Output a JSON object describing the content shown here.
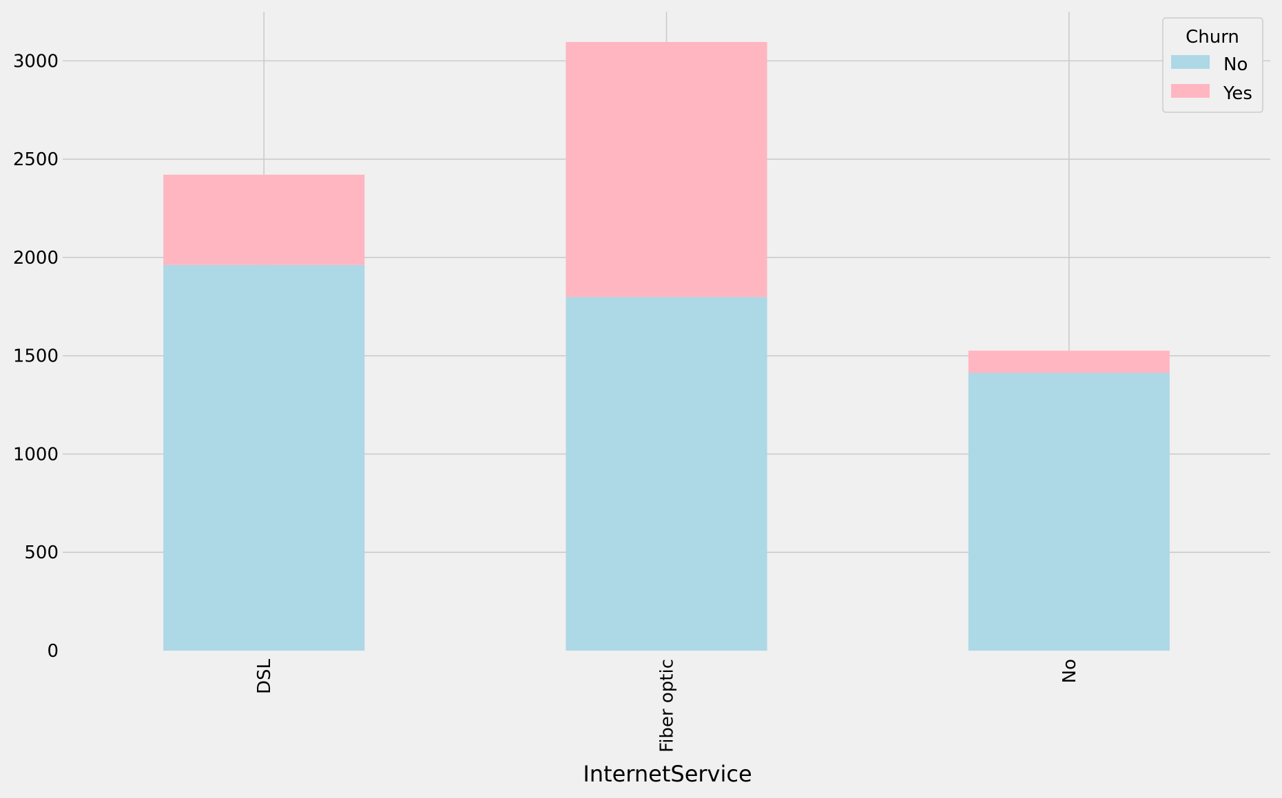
{
  "chart_data": {
    "type": "bar",
    "stacked": true,
    "categories": [
      "DSL",
      "Fiber optic",
      "No"
    ],
    "series": [
      {
        "name": "No",
        "values": [
          1962,
          1799,
          1413
        ],
        "color": "#add8e6"
      },
      {
        "name": "Yes",
        "values": [
          459,
          1297,
          113
        ],
        "color": "#ffb6c1"
      }
    ],
    "title": "",
    "xlabel": "InternetService",
    "ylabel": "",
    "ylim": [
      0,
      3250
    ],
    "yticks": [
      0,
      500,
      1000,
      1500,
      2000,
      2500,
      3000
    ],
    "grid": true,
    "legend": {
      "title": "Churn",
      "position": "top-right"
    },
    "colors": {
      "background": "#f0f0f0",
      "grid": "#cbcbcb"
    }
  }
}
